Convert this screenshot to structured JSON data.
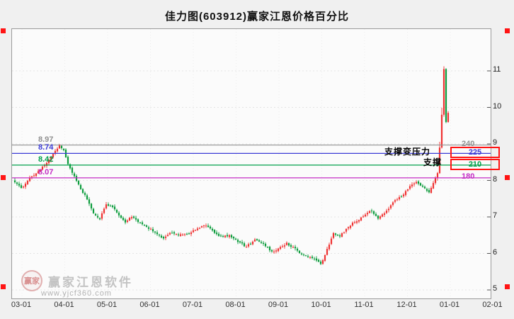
{
  "title": "佳力图(603912)赢家江恩价格百分比",
  "watermark": {
    "logo_text": "赢家",
    "name": "赢家江恩软件",
    "url": "www.yjcf360.com"
  },
  "annotations": {
    "texts": [
      {
        "label": "支撑变压力"
      },
      {
        "label": "支撑"
      }
    ]
  },
  "chart_data": {
    "type": "candlestick",
    "title": "佳力图(603912)赢家江恩价格百分比",
    "ylim": [
      4.8,
      12.1
    ],
    "y_ticks": [
      5,
      6,
      7,
      8,
      9,
      10,
      11
    ],
    "x_tick_labels": [
      "03-01",
      "04-01",
      "05-01",
      "06-01",
      "07-01",
      "08-01",
      "09-01",
      "10-01",
      "11-01",
      "12-01",
      "01-01",
      "02-01"
    ],
    "num_candles": 205,
    "up_color": "#ef3232",
    "down_color": "#0c9c3c",
    "grid": "faint-dotted",
    "legend": "none",
    "price_close_anchors": [
      [
        0,
        7.95
      ],
      [
        3,
        7.78
      ],
      [
        6,
        8.0
      ],
      [
        10,
        8.18
      ],
      [
        14,
        8.42
      ],
      [
        18,
        8.72
      ],
      [
        21,
        8.95
      ],
      [
        23,
        8.85
      ],
      [
        25,
        8.45
      ],
      [
        28,
        8.1
      ],
      [
        31,
        7.75
      ],
      [
        34,
        7.5
      ],
      [
        37,
        7.1
      ],
      [
        40,
        6.95
      ],
      [
        43,
        7.35
      ],
      [
        46,
        7.28
      ],
      [
        49,
        7.05
      ],
      [
        52,
        6.85
      ],
      [
        55,
        7.02
      ],
      [
        58,
        6.88
      ],
      [
        62,
        6.72
      ],
      [
        66,
        6.58
      ],
      [
        70,
        6.42
      ],
      [
        73,
        6.58
      ],
      [
        77,
        6.5
      ],
      [
        81,
        6.52
      ],
      [
        85,
        6.65
      ],
      [
        89,
        6.78
      ],
      [
        93,
        6.62
      ],
      [
        97,
        6.45
      ],
      [
        101,
        6.5
      ],
      [
        105,
        6.32
      ],
      [
        109,
        6.18
      ],
      [
        113,
        6.38
      ],
      [
        117,
        6.28
      ],
      [
        121,
        6.05
      ],
      [
        124,
        6.12
      ],
      [
        128,
        6.28
      ],
      [
        132,
        6.12
      ],
      [
        136,
        5.95
      ],
      [
        140,
        5.88
      ],
      [
        144,
        5.72
      ],
      [
        146,
        5.95
      ],
      [
        148,
        6.25
      ],
      [
        150,
        6.55
      ],
      [
        153,
        6.48
      ],
      [
        156,
        6.65
      ],
      [
        159,
        6.82
      ],
      [
        162,
        6.92
      ],
      [
        165,
        7.05
      ],
      [
        168,
        7.18
      ],
      [
        171,
        6.95
      ],
      [
        174,
        7.1
      ],
      [
        177,
        7.32
      ],
      [
        180,
        7.5
      ],
      [
        183,
        7.62
      ],
      [
        186,
        7.82
      ],
      [
        189,
        7.95
      ],
      [
        192,
        7.85
      ],
      [
        195,
        7.68
      ],
      [
        197,
        7.92
      ],
      [
        199,
        8.2
      ],
      [
        200,
        8.9
      ],
      [
        201,
        9.8
      ],
      [
        202,
        11.05
      ],
      [
        203,
        9.6
      ],
      [
        204,
        9.85
      ]
    ],
    "spike_high": 11.27,
    "levels": [
      {
        "price": 8.97,
        "left_label": "8.97",
        "right_label": "240",
        "color": "#909090",
        "boxed": false
      },
      {
        "price": 8.74,
        "left_label": "8.74",
        "right_label": "225",
        "color": "#3b3bd6",
        "boxed": true
      },
      {
        "price": 8.42,
        "left_label": "8.42",
        "right_label": "210",
        "color": "#00a04a",
        "boxed": true
      },
      {
        "price": 8.07,
        "left_label": "8.07",
        "right_label": "180",
        "color": "#c42cc4",
        "boxed": false
      }
    ],
    "annotation_box_color": "#ff1414"
  }
}
